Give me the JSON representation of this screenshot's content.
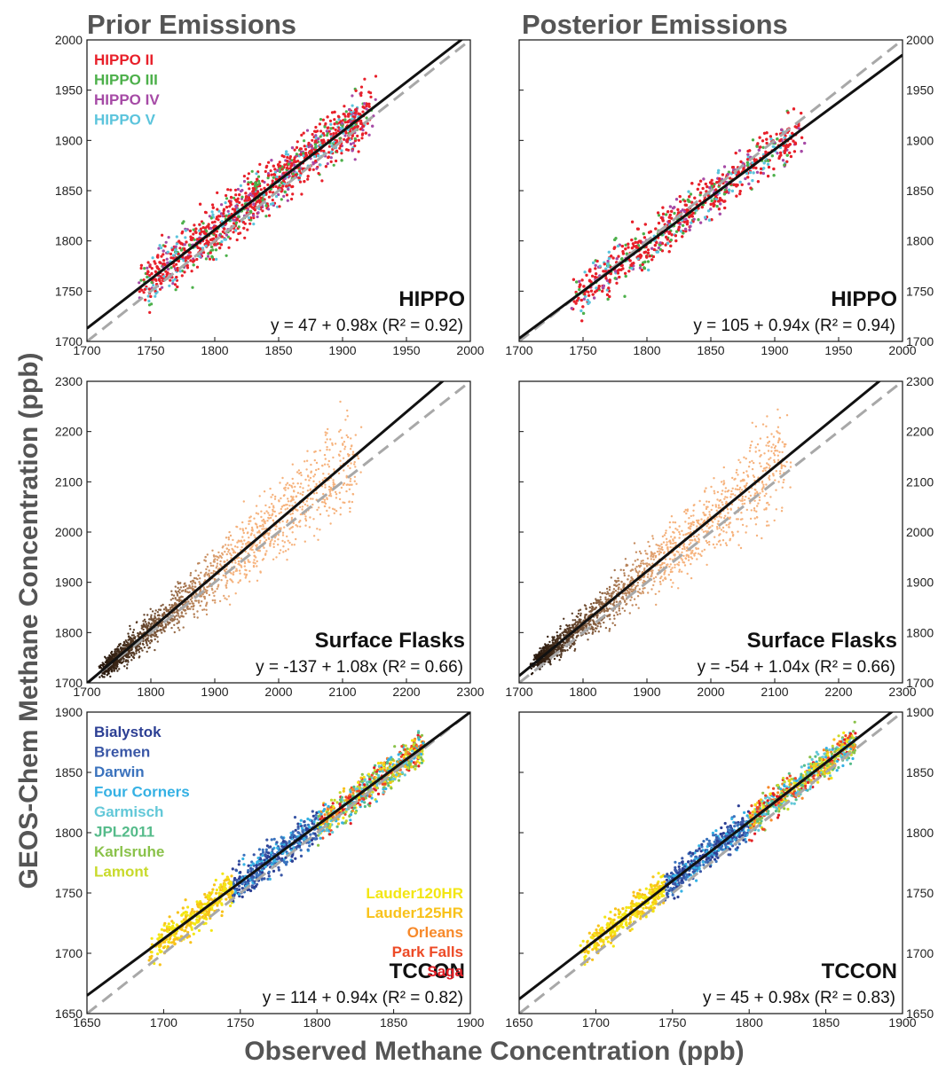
{
  "figure": {
    "col_titles": [
      "Prior Emissions",
      "Posterior Emissions"
    ],
    "ylabel": "GEOS-Chem Methane Concentration (ppb)",
    "xlabel": "Observed Methane Concentration (ppb)"
  },
  "colors": {
    "fit_line": "#111111",
    "one_to_one": "#a8a8a8",
    "hippo": {
      "HIPPO II": "#e8202a",
      "HIPPO III": "#4cb04a",
      "HIPPO IV": "#a64aa6",
      "HIPPO V": "#5bc4dc"
    },
    "tccon": {
      "Bialystok": "#2c3f94",
      "Bremen": "#3a57a6",
      "Darwin": "#3a72bd",
      "Four Corners": "#35b1e4",
      "Garmisch": "#63c8d8",
      "JPL2011": "#55bb8a",
      "Karlsruhe": "#8ac24a",
      "Lamont": "#c8da2b",
      "Lauder120HR": "#f3e613",
      "Lauder125HR": "#f8c21a",
      "Orleans": "#f7892a",
      "Park Falls": "#ed4a26",
      "Saga": "#e11f26"
    },
    "flask_dark": "#2a1a0e",
    "flask_light": "#f6b27c"
  },
  "chart_data": [
    {
      "type": "scatter",
      "row": 0,
      "col": 0,
      "dataset": "HIPPO",
      "xlim": [
        1700,
        2000
      ],
      "ylim": [
        1700,
        2000
      ],
      "xticks": [
        1700,
        1750,
        1800,
        1850,
        1900,
        1950,
        2000
      ],
      "yticks": [
        1700,
        1750,
        1800,
        1850,
        1900,
        1950,
        2000
      ],
      "tick_side": "left",
      "fit": {
        "intercept": 47,
        "slope": 0.98,
        "r2": 0.92
      },
      "equation_text": "y = 47 + 0.98x  (R² = 0.92)",
      "legend_title": "",
      "legend": [
        "HIPPO II",
        "HIPPO III",
        "HIPPO IV",
        "HIPPO V"
      ],
      "legend_placement": "top-left",
      "point_cloud": {
        "x_range": [
          1725,
          1930
        ],
        "centre_slope": 0.98,
        "centre_intercept": 47,
        "scatter_sd": 18
      }
    },
    {
      "type": "scatter",
      "row": 0,
      "col": 1,
      "dataset": "HIPPO",
      "xlim": [
        1700,
        2000
      ],
      "ylim": [
        1700,
        2000
      ],
      "xticks": [
        1700,
        1750,
        1800,
        1850,
        1900,
        1950,
        2000
      ],
      "yticks": [
        1700,
        1750,
        1800,
        1850,
        1900,
        1950,
        2000
      ],
      "tick_side": "right",
      "fit": {
        "intercept": 105,
        "slope": 0.94,
        "r2": 0.94
      },
      "equation_text": "y = 105 + 0.94x  (R² = 0.94)",
      "legend": [],
      "point_cloud": {
        "x_range": [
          1725,
          1930
        ],
        "centre_slope": 0.94,
        "centre_intercept": 105,
        "scatter_sd": 16
      }
    },
    {
      "type": "scatter",
      "row": 1,
      "col": 0,
      "dataset": "Surface Flasks",
      "xlim": [
        1700,
        2300
      ],
      "ylim": [
        1700,
        2300
      ],
      "xticks": [
        1700,
        1800,
        1900,
        2000,
        2100,
        2200,
        2300
      ],
      "yticks": [
        1700,
        1800,
        1900,
        2000,
        2100,
        2200,
        2300
      ],
      "tick_side": "left",
      "fit": {
        "intercept": -137,
        "slope": 1.08,
        "r2": 0.66
      },
      "equation_text": "y = -137 + 1.08x  (R² = 0.66)",
      "legend": [],
      "point_cloud": {
        "x_range": [
          1730,
          2250
        ],
        "centre_slope": 1.08,
        "centre_intercept": -137,
        "scatter_sd": 40
      }
    },
    {
      "type": "scatter",
      "row": 1,
      "col": 1,
      "dataset": "Surface Flasks",
      "xlim": [
        1700,
        2300
      ],
      "ylim": [
        1700,
        2300
      ],
      "xticks": [
        1700,
        1800,
        1900,
        2000,
        2100,
        2200,
        2300
      ],
      "yticks": [
        1700,
        1800,
        1900,
        2000,
        2100,
        2200,
        2300
      ],
      "tick_side": "right",
      "fit": {
        "intercept": -54,
        "slope": 1.04,
        "r2": 0.66
      },
      "equation_text": "y = -54 + 1.04x  (R² = 0.66)",
      "legend": [],
      "point_cloud": {
        "x_range": [
          1730,
          2250
        ],
        "centre_slope": 1.04,
        "centre_intercept": -54,
        "scatter_sd": 38
      }
    },
    {
      "type": "scatter",
      "row": 2,
      "col": 0,
      "dataset": "TCCON",
      "xlim": [
        1650,
        1900
      ],
      "ylim": [
        1650,
        1900
      ],
      "xticks": [
        1650,
        1700,
        1750,
        1800,
        1850,
        1900
      ],
      "yticks": [
        1650,
        1700,
        1750,
        1800,
        1850,
        1900
      ],
      "tick_side": "left",
      "fit": {
        "intercept": 114,
        "slope": 0.94,
        "r2": 0.82
      },
      "equation_text": "y = 114 + 0.94x  (R² = 0.82)",
      "legend": [
        "Bialystok",
        "Bremen",
        "Darwin",
        "Four Corners",
        "Garmisch",
        "JPL2011",
        "Karlsruhe",
        "Lamont"
      ],
      "legend2": [
        "Lauder120HR",
        "Lauder125HR",
        "Orleans",
        "Park Falls",
        "Saga"
      ],
      "point_cloud": {
        "x_range": [
          1685,
          1880
        ],
        "centre_slope": 0.94,
        "centre_intercept": 114,
        "scatter_sd": 10
      }
    },
    {
      "type": "scatter",
      "row": 2,
      "col": 1,
      "dataset": "TCCON",
      "xlim": [
        1650,
        1900
      ],
      "ylim": [
        1650,
        1900
      ],
      "xticks": [
        1650,
        1700,
        1750,
        1800,
        1850,
        1900
      ],
      "yticks": [
        1650,
        1700,
        1750,
        1800,
        1850,
        1900
      ],
      "tick_side": "right",
      "fit": {
        "intercept": 45,
        "slope": 0.98,
        "r2": 0.83
      },
      "equation_text": "y = 45 + 0.98x  (R² = 0.83)",
      "legend": [],
      "point_cloud": {
        "x_range": [
          1685,
          1880
        ],
        "centre_slope": 0.98,
        "centre_intercept": 45,
        "scatter_sd": 9
      }
    }
  ]
}
